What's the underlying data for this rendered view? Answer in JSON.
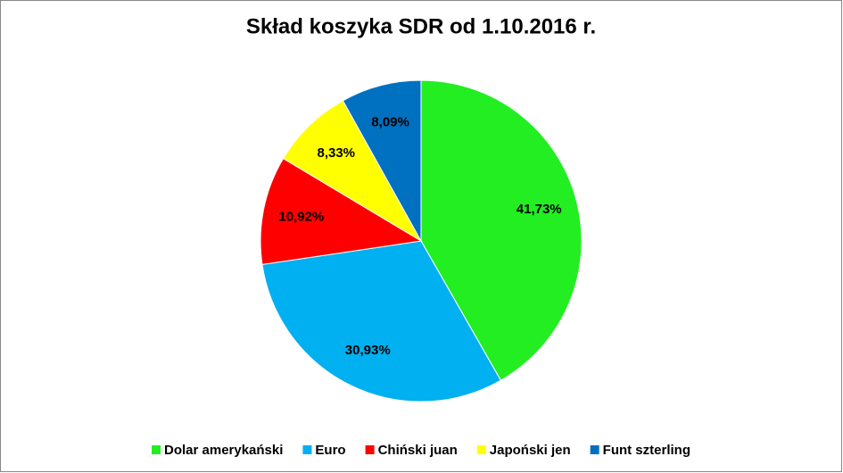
{
  "chart_data": {
    "type": "pie",
    "title": "Skład koszyka SDR od 1.10.2016 r.",
    "categories": [
      "Dolar amerykański",
      "Euro",
      "Chiński juan",
      "Japoński jen",
      "Funt szterling"
    ],
    "values": [
      41.73,
      30.93,
      10.92,
      8.33,
      8.09
    ],
    "value_labels": [
      "41,73%",
      "30,93%",
      "10,92%",
      "8,33%",
      "8,09%"
    ],
    "colors": [
      "#22ee22",
      "#00b0f0",
      "#ff0000",
      "#ffff00",
      "#0070c0"
    ],
    "legend": "bottom"
  }
}
